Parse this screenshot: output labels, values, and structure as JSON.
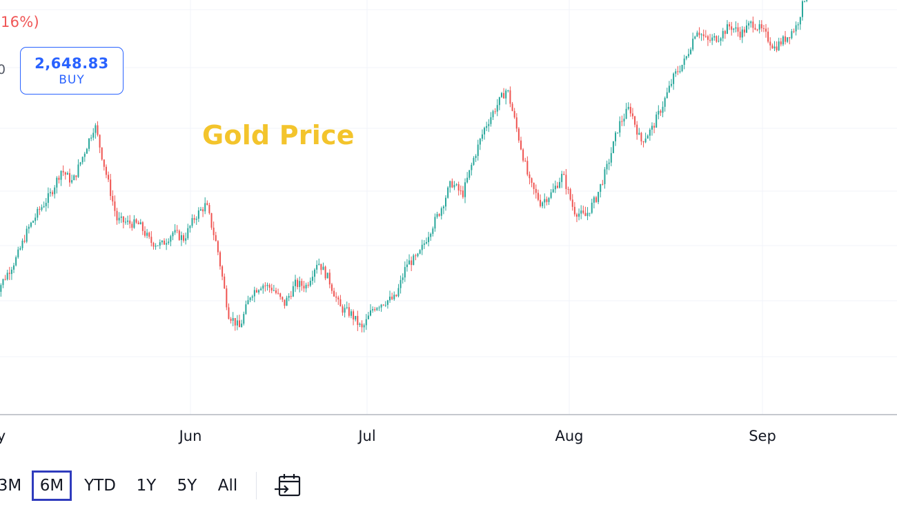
{
  "header": {
    "change_text": ".16%)",
    "bid_fragment": "0",
    "buy_price": "2,648.83",
    "buy_label": "BUY"
  },
  "colors": {
    "up": "#26a69a",
    "down": "#ef5350",
    "accent": "#2962ff",
    "title": "#f3c42c",
    "active_range": "#2f3bbd"
  },
  "range_selector": {
    "options": [
      "3M",
      "6M",
      "YTD",
      "1Y",
      "5Y",
      "All"
    ],
    "active": "6M"
  },
  "toolbar": {
    "calendar_icon": "calendar-goto-icon"
  },
  "chart_data": {
    "type": "line",
    "title": "Gold Price",
    "xlabel": "",
    "ylabel": "",
    "x_tick_labels": [
      "y",
      "Jun",
      "Jul",
      "Aug",
      "Sep"
    ],
    "x_range": [
      "2024-05-14",
      "2024-09-26"
    ],
    "grid": true,
    "reference_line": {
      "value": 2648.83,
      "style": "dotted",
      "color": "#f05656"
    },
    "series": [
      {
        "values": [
          [
            0,
            2338
          ],
          [
            2,
            2350
          ],
          [
            4,
            2362
          ],
          [
            6,
            2380
          ],
          [
            8,
            2392
          ],
          [
            10,
            2402
          ],
          [
            12,
            2418
          ],
          [
            14,
            2410
          ],
          [
            16,
            2428
          ],
          [
            18,
            2447
          ],
          [
            20,
            2416
          ],
          [
            22,
            2386
          ],
          [
            24,
            2384
          ],
          [
            26,
            2383
          ],
          [
            28,
            2372
          ],
          [
            30,
            2370
          ],
          [
            32,
            2378
          ],
          [
            34,
            2374
          ],
          [
            36,
            2388
          ],
          [
            38,
            2396
          ],
          [
            40,
            2368
          ],
          [
            42,
            2326
          ],
          [
            44,
            2317
          ],
          [
            46,
            2339
          ],
          [
            48,
            2345
          ],
          [
            50,
            2342
          ],
          [
            52,
            2332
          ],
          [
            54,
            2345
          ],
          [
            56,
            2344
          ],
          [
            58,
            2360
          ],
          [
            60,
            2348
          ],
          [
            62,
            2330
          ],
          [
            64,
            2326
          ],
          [
            66,
            2316
          ],
          [
            68,
            2330
          ],
          [
            70,
            2334
          ],
          [
            72,
            2336
          ],
          [
            74,
            2358
          ],
          [
            76,
            2362
          ],
          [
            78,
            2378
          ],
          [
            80,
            2392
          ],
          [
            82,
            2410
          ],
          [
            84,
            2402
          ],
          [
            86,
            2425
          ],
          [
            88,
            2445
          ],
          [
            90,
            2458
          ],
          [
            92,
            2470
          ],
          [
            94,
            2440
          ],
          [
            96,
            2410
          ],
          [
            98,
            2397
          ],
          [
            100,
            2403
          ],
          [
            102,
            2415
          ],
          [
            104,
            2392
          ],
          [
            106,
            2388
          ],
          [
            108,
            2400
          ],
          [
            110,
            2420
          ],
          [
            112,
            2446
          ],
          [
            114,
            2458
          ],
          [
            116,
            2436
          ],
          [
            118,
            2444
          ],
          [
            120,
            2460
          ],
          [
            122,
            2478
          ],
          [
            124,
            2488
          ],
          [
            126,
            2508
          ],
          [
            128,
            2500
          ],
          [
            130,
            2503
          ],
          [
            132,
            2510
          ],
          [
            134,
            2505
          ],
          [
            136,
            2512
          ],
          [
            138,
            2506
          ],
          [
            140,
            2496
          ],
          [
            142,
            2502
          ],
          [
            144,
            2510
          ],
          [
            146,
            2535
          ],
          [
            148,
            2558
          ],
          [
            150,
            2563
          ],
          [
            152,
            2560
          ],
          [
            154,
            2578
          ],
          [
            156,
            2586
          ],
          [
            158,
            2622
          ],
          [
            160,
            2630
          ],
          [
            162,
            2658
          ]
        ]
      }
    ]
  }
}
